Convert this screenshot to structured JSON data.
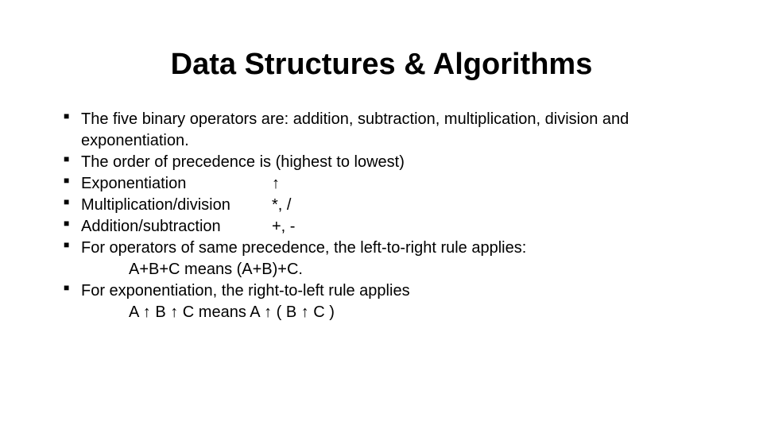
{
  "title": "Data Structures & Algorithms",
  "bullets": {
    "b1": "The five binary operators are: addition, subtraction, multiplication, division and exponentiation.",
    "b2": "The order of precedence is (highest to lowest)",
    "b3_label": "Exponentiation",
    "b3_sym": "↑",
    "b4_label": "Multiplication/division",
    "b4_sym": "*, /",
    "b5_label": "Addition/subtraction",
    "b5_sym": "+, -",
    "b6": "For operators of same precedence, the left-to-right rule applies:",
    "b6_indent": "A+B+C means (A+B)+C.",
    "b7": "For exponentiation, the right-to-left rule applies",
    "b7_indent": "A ↑ B ↑ C  means A ↑ ( B ↑ C )"
  },
  "style": {
    "background_color": "#ffffff",
    "text_color": "#000000",
    "title_fontsize": 38,
    "body_fontsize": 20,
    "bullet_marker": "■",
    "font_family": "Arial"
  }
}
